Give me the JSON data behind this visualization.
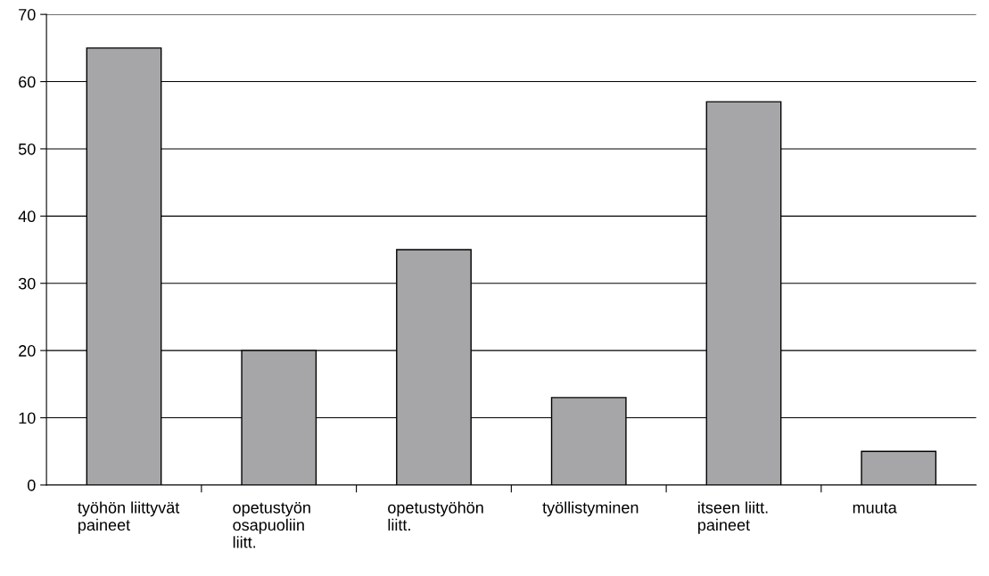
{
  "chart_data": {
    "type": "bar",
    "categories": [
      "työhön liittyvät\npaineet",
      "opetustyön\nosapuoliin\nliitt.",
      "opetustyöhön\nliitt.",
      "työllistyminen",
      "itseen liitt.\npaineet",
      "muuta"
    ],
    "values": [
      65,
      20,
      35,
      13,
      57,
      5
    ],
    "color": "#a6a6a9",
    "ylim": [
      0,
      70
    ],
    "yticks": [
      0,
      10,
      20,
      30,
      40,
      50,
      60,
      70
    ],
    "grid": "y",
    "legend": false
  }
}
